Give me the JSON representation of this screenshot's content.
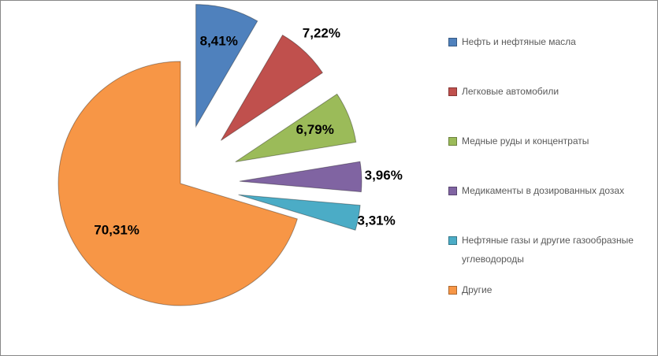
{
  "chart_data": {
    "type": "pie",
    "categories": [
      "Нефть и нефтяные масла",
      "Легковые автомобили",
      "Медные руды и концентраты",
      "Медикаменты в дозированных дозах",
      "Нефтяные газы и другие газообразные углеводороды",
      "Другие"
    ],
    "values": [
      8.41,
      7.22,
      6.79,
      3.96,
      3.31,
      70.31
    ],
    "value_labels": [
      "8,41%",
      "7,22%",
      "6,79%",
      "3,96%",
      "3,31%",
      "70,31%"
    ],
    "colors": [
      "#4f81bd",
      "#c0504d",
      "#9bbb59",
      "#8064a2",
      "#4bacc6",
      "#f79646"
    ],
    "legend": "right"
  }
}
